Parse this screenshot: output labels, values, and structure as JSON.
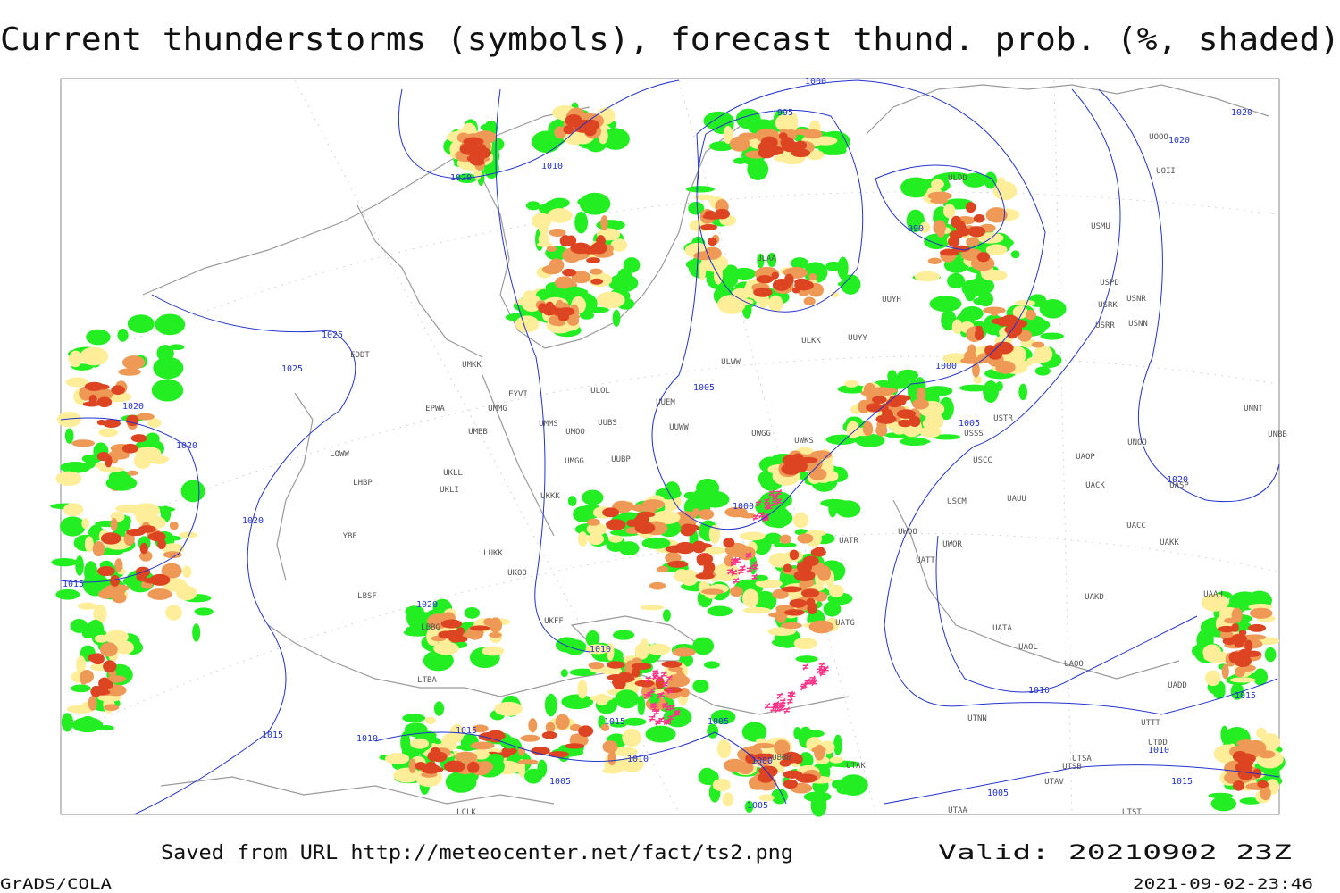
{
  "header": {
    "title": "Current thunderstorms (symbols), forecast thund. prob. (%, shaded)"
  },
  "map": {
    "isobar_labels": [
      "1000",
      "995",
      "1020",
      "1020",
      "1010",
      "1020",
      "990",
      "1025",
      "1025",
      "1020",
      "1020",
      "1005",
      "1000",
      "1005",
      "1020",
      "1020",
      "1000",
      "1015",
      "1020",
      "1010",
      "1010",
      "1015",
      "1015",
      "1005",
      "1010",
      "1015",
      "1015",
      "1010",
      "1010",
      "1000",
      "1005",
      "1015",
      "1005",
      "1005"
    ],
    "stations": [
      "ULAA",
      "UUYH",
      "ULKK",
      "UUYY",
      "ULWW",
      "ULOL",
      "UUEM",
      "UUWW",
      "UWGG",
      "UWKS",
      "UMMS",
      "UMOO",
      "UUBS",
      "UMKK",
      "EYVI",
      "UMMG",
      "EPWA",
      "UMBB",
      "UMGG",
      "UUBP",
      "UKLL",
      "UKLI",
      "UKKK",
      "LHBP",
      "LOWW",
      "LYBE",
      "LUKK",
      "UKOO",
      "LBSF",
      "UKFF",
      "LBBG",
      "LTBA",
      "UATG",
      "UATA",
      "UAOL",
      "UAOO",
      "UTNN",
      "UAKD",
      "UACC",
      "UAKK",
      "UACK",
      "UAOP",
      "UNOO",
      "UNBB",
      "UNNT",
      "UASP",
      "UAAH",
      "UADD",
      "USCC",
      "USCM",
      "USSS",
      "USTR",
      "UWOO",
      "UAUU",
      "UATT",
      "UWOR",
      "UATR",
      "USNN",
      "USRR",
      "USNR",
      "USRK",
      "USPD",
      "USMU",
      "UOOO",
      "UOII",
      "ULDD",
      "UTAA",
      "UTSA",
      "UTSB",
      "UTAV",
      "UTST",
      "UTTT",
      "UTDD",
      "UBBB",
      "UTAK",
      "EDDT",
      "LCLK"
    ]
  },
  "footer": {
    "source": "Saved from URL http://meteocenter.net/fact/ts2.png",
    "valid": "Valid: 20210902 23Z",
    "software": "GrADS/COLA",
    "timestamp": "2021-09-02-23:46"
  }
}
